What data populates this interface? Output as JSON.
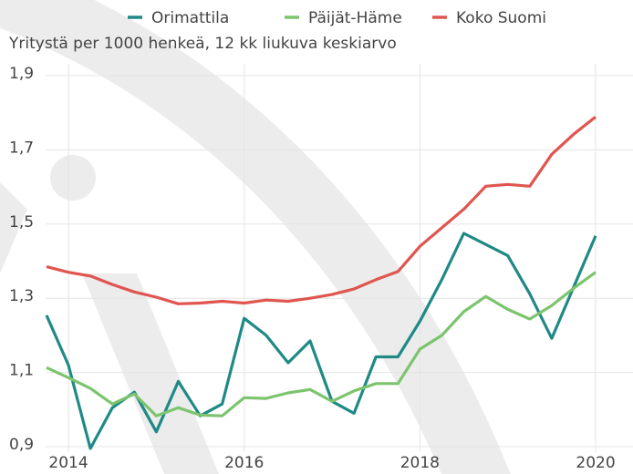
{
  "chart_data": {
    "type": "line",
    "subtitle": "Yritystä per 1000 henkeä, 12 kk liukuva keskiarvo",
    "x": [
      2013.75,
      2014,
      2014.25,
      2014.5,
      2014.75,
      2015,
      2015.25,
      2015.5,
      2015.75,
      2016,
      2016.25,
      2016.5,
      2016.75,
      2017,
      2017.25,
      2017.5,
      2017.75,
      2018,
      2018.25,
      2018.5,
      2018.75,
      2019,
      2019.25,
      2019.5,
      2019.75,
      2020
    ],
    "series": [
      {
        "name": "Orimattila",
        "color": "#1f8a85",
        "values": [
          1.254,
          1.12,
          0.895,
          1.005,
          1.047,
          0.94,
          1.076,
          0.983,
          1.015,
          1.246,
          1.2,
          1.126,
          1.185,
          1.022,
          0.99,
          1.142,
          1.142,
          1.238,
          1.35,
          1.475,
          1.445,
          1.415,
          1.312,
          1.192,
          1.33,
          1.468
        ]
      },
      {
        "name": "Päijät-Häme",
        "color": "#7cc46e",
        "values": [
          1.113,
          1.086,
          1.057,
          1.015,
          1.042,
          0.983,
          1.005,
          0.985,
          0.983,
          1.032,
          1.03,
          1.045,
          1.054,
          1.022,
          1.05,
          1.07,
          1.07,
          1.163,
          1.2,
          1.264,
          1.305,
          1.27,
          1.244,
          1.28,
          1.327,
          1.37
        ]
      },
      {
        "name": "Koko Suomi",
        "color": "#e05550",
        "values": [
          1.385,
          1.37,
          1.36,
          1.337,
          1.317,
          1.303,
          1.285,
          1.287,
          1.292,
          1.287,
          1.295,
          1.292,
          1.3,
          1.31,
          1.325,
          1.35,
          1.372,
          1.44,
          1.49,
          1.54,
          1.602,
          1.607,
          1.602,
          1.688,
          1.742,
          1.789
        ]
      }
    ],
    "xlim": [
      2013.74,
      2020.28
    ],
    "xticks": [
      2014,
      2016,
      2018,
      2020
    ],
    "ylim": [
      0.9,
      1.9
    ],
    "yticks": [
      {
        "value": 0.9,
        "label": "0,9"
      },
      {
        "value": 1.1,
        "label": "1,1"
      },
      {
        "value": 1.3,
        "label": "1,3"
      },
      {
        "value": 1.5,
        "label": "1,5"
      },
      {
        "value": 1.7,
        "label": "1,7"
      },
      {
        "value": 1.9,
        "label": "1,9"
      }
    ],
    "grid": true,
    "legend": "top"
  }
}
